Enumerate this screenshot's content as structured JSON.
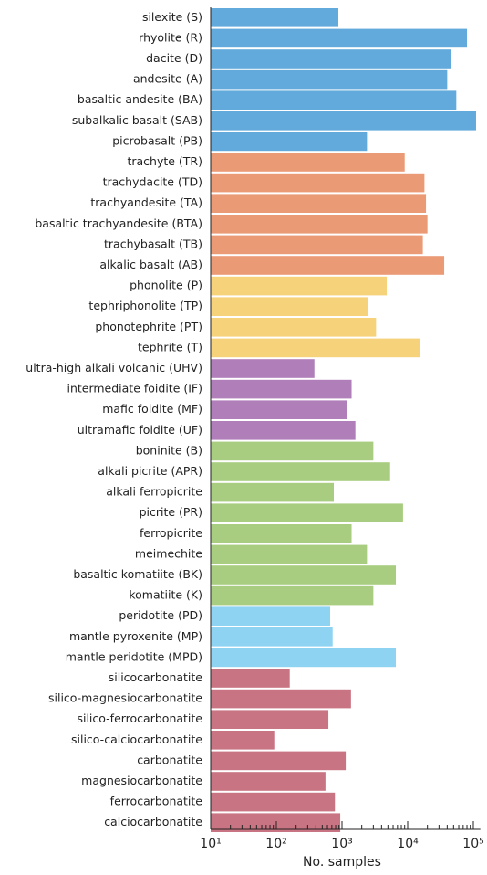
{
  "chart_data": {
    "type": "bar",
    "orientation": "horizontal",
    "x_label": "No. samples",
    "log_x": true,
    "categories": [
      "silexite (S)",
      "rhyolite (R)",
      "dacite (D)",
      "andesite (A)",
      "basaltic andesite (BA)",
      "subalkalic basalt (SAB)",
      "picrobasalt (PB)",
      "trachyte (TR)",
      "trachydacite (TD)",
      "trachyandesite (TA)",
      "basaltic trachyandesite (BTA)",
      "trachybasalt (TB)",
      "alkalic basalt (AB)",
      "phonolite (P)",
      "tephriphonolite (TP)",
      "phonotephrite (PT)",
      "tephrite (T)",
      "ultra-high alkali volcanic (UHV)",
      "intermediate foidite (IF)",
      "mafic foidite (MF)",
      "ultramafic foidite (UF)",
      "boninite (B)",
      "alkali picrite (APR)",
      "alkali ferropicrite",
      "picrite (PR)",
      "ferropicrite",
      "meimechite",
      "basaltic komatiite (BK)",
      "komatiite (K)",
      "peridotite (PD)",
      "mantle pyroxenite (MP)",
      "mantle peridotite (MPD)",
      "silicocarbonatite",
      "silico-magnesiocarbonatite",
      "silico-ferrocarbonatite",
      "silico-calciocarbonatite",
      "carbonatite",
      "magnesiocarbonatite",
      "ferrocarbonatite",
      "calciocarbonatite"
    ],
    "values": [
      880,
      80000,
      45000,
      40000,
      55000,
      110000,
      2400,
      9000,
      18000,
      19000,
      20000,
      17000,
      36000,
      4800,
      2500,
      3300,
      15500,
      380,
      1400,
      1200,
      1600,
      3000,
      5400,
      750,
      8500,
      1400,
      2400,
      6600,
      3000,
      660,
      720,
      6600,
      160,
      1370,
      620,
      93,
      1140,
      560,
      780,
      940
    ],
    "colors": [
      "#62a9dc",
      "#62a9dc",
      "#62a9dc",
      "#62a9dc",
      "#62a9dc",
      "#62a9dc",
      "#62a9dc",
      "#eb9a76",
      "#eb9a76",
      "#eb9a76",
      "#eb9a76",
      "#eb9a76",
      "#eb9a76",
      "#f6d27b",
      "#f6d27b",
      "#f6d27b",
      "#f6d27b",
      "#b07fba",
      "#b07fba",
      "#b07fba",
      "#b07fba",
      "#a8cd80",
      "#a8cd80",
      "#a8cd80",
      "#a8cd80",
      "#a8cd80",
      "#a8cd80",
      "#a8cd80",
      "#a8cd80",
      "#8fd3f3",
      "#8fd3f3",
      "#8fd3f3",
      "#c97482",
      "#c97482",
      "#c97482",
      "#c97482",
      "#c97482",
      "#c97482",
      "#c97482",
      "#c97482"
    ],
    "xlim": [
      10,
      120000
    ],
    "xticks": [
      {
        "value": 10,
        "label": "10¹"
      },
      {
        "value": 100,
        "label": "10²"
      },
      {
        "value": 1000,
        "label": "10³"
      },
      {
        "value": 10000,
        "label": "10⁴"
      },
      {
        "value": 100000,
        "label": "10⁵"
      }
    ],
    "minor_xticks": [
      20,
      30,
      40,
      50,
      60,
      70,
      80,
      90,
      200,
      300,
      400,
      500,
      600,
      700,
      800,
      900,
      2000,
      3000,
      4000,
      5000,
      6000,
      7000,
      8000,
      9000,
      20000,
      30000,
      40000,
      50000,
      60000,
      70000,
      80000,
      90000
    ]
  }
}
